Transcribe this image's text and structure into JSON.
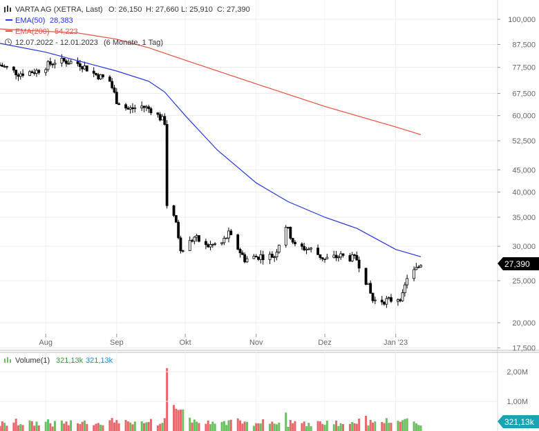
{
  "header": {
    "name": "VARTA AG (XETRA, Last)",
    "open": "O: 26,150",
    "high": "H: 27,660",
    "low": "L: 25,910",
    "close": "C: 27,390",
    "ema50_label": "EMA(50)",
    "ema50_value": "28,383",
    "ema200_label": "EMA(200)",
    "ema200_value": "54,223",
    "range": "12.07.2022 - 12.01.2023",
    "period": "(6 Monate, 1 Tag)",
    "volume_label": "Volume(1)",
    "volume_value1": "321,13k",
    "volume_value2": "321,13k"
  },
  "badges": {
    "price": "27,390",
    "volume": "321,13k"
  },
  "colors": {
    "ema50": "#2233dd",
    "ema200": "#e84c3d",
    "volume_up": "#6abf5e",
    "volume_down": "#e8676b",
    "candle": "#000000"
  },
  "chart_data": {
    "type": "candlestick",
    "scale": "log",
    "y_ticks": [
      "100,000",
      "87,500",
      "77,500",
      "67,500",
      "60,000",
      "52,500",
      "45,000",
      "40,000",
      "35,000",
      "30,000",
      "25,000",
      "20,000",
      "17,500"
    ],
    "y_tick_values": [
      100,
      87.5,
      77.5,
      67.5,
      60,
      52.5,
      45,
      40,
      35,
      30,
      25,
      20,
      17.5
    ],
    "x_ticks": [
      "Aug",
      "Sep",
      "Okt",
      "Nov",
      "Dez",
      "Jan '23"
    ],
    "x_tick_dates": [
      "2022-08-01",
      "2022-09-01",
      "2022-10-01",
      "2022-11-01",
      "2022-12-01",
      "2023-01-01"
    ],
    "x_range": [
      "2022-07-12",
      "2023-01-12"
    ],
    "volume_ticks": [
      "2,00M",
      "1,00M"
    ],
    "volume_tick_values": [
      2000000,
      1000000
    ],
    "close_series": [
      {
        "date": "2022-07-12",
        "value": 78.5
      },
      {
        "date": "2022-07-20",
        "value": 75.0
      },
      {
        "date": "2022-07-28",
        "value": 76.0
      },
      {
        "date": "2022-08-01",
        "value": 78.0
      },
      {
        "date": "2022-08-05",
        "value": 80.0
      },
      {
        "date": "2022-08-10",
        "value": 80.0
      },
      {
        "date": "2022-08-16",
        "value": 79.0
      },
      {
        "date": "2022-08-22",
        "value": 75.0
      },
      {
        "date": "2022-08-29",
        "value": 72.0
      },
      {
        "date": "2022-09-01",
        "value": 65.0
      },
      {
        "date": "2022-09-06",
        "value": 62.0
      },
      {
        "date": "2022-09-12",
        "value": 63.0
      },
      {
        "date": "2022-09-16",
        "value": 62.0
      },
      {
        "date": "2022-09-22",
        "value": 58.0
      },
      {
        "date": "2022-09-23",
        "value": 37.5
      },
      {
        "date": "2022-09-27",
        "value": 34.0
      },
      {
        "date": "2022-09-29",
        "value": 29.0
      },
      {
        "date": "2022-10-05",
        "value": 31.5
      },
      {
        "date": "2022-10-10",
        "value": 30.0
      },
      {
        "date": "2022-10-17",
        "value": 30.5
      },
      {
        "date": "2022-10-20",
        "value": 32.0
      },
      {
        "date": "2022-10-27",
        "value": 28.0
      },
      {
        "date": "2022-11-03",
        "value": 28.5
      },
      {
        "date": "2022-11-09",
        "value": 28.5
      },
      {
        "date": "2022-11-14",
        "value": 33.5
      },
      {
        "date": "2022-11-18",
        "value": 30.0
      },
      {
        "date": "2022-11-25",
        "value": 29.5
      },
      {
        "date": "2022-12-01",
        "value": 28.0
      },
      {
        "date": "2022-12-08",
        "value": 28.5
      },
      {
        "date": "2022-12-15",
        "value": 28.0
      },
      {
        "date": "2022-12-19",
        "value": 25.0
      },
      {
        "date": "2022-12-22",
        "value": 22.5
      },
      {
        "date": "2022-12-29",
        "value": 22.5
      },
      {
        "date": "2023-01-04",
        "value": 23.0
      },
      {
        "date": "2023-01-06",
        "value": 25.5
      },
      {
        "date": "2023-01-10",
        "value": 26.5
      },
      {
        "date": "2023-01-12",
        "value": 27.39
      }
    ],
    "ema50": [
      {
        "date": "2022-07-12",
        "value": 88.0
      },
      {
        "date": "2022-08-01",
        "value": 84.0
      },
      {
        "date": "2022-08-22",
        "value": 78.5
      },
      {
        "date": "2022-09-01",
        "value": 76.0
      },
      {
        "date": "2022-09-15",
        "value": 72.0
      },
      {
        "date": "2022-09-22",
        "value": 68.0
      },
      {
        "date": "2022-10-01",
        "value": 60.0
      },
      {
        "date": "2022-10-15",
        "value": 50.0
      },
      {
        "date": "2022-11-01",
        "value": 42.0
      },
      {
        "date": "2022-11-15",
        "value": 38.0
      },
      {
        "date": "2022-12-01",
        "value": 35.0
      },
      {
        "date": "2022-12-15",
        "value": 33.0
      },
      {
        "date": "2023-01-01",
        "value": 29.5
      },
      {
        "date": "2023-01-12",
        "value": 28.383
      }
    ],
    "ema200": [
      {
        "date": "2022-07-12",
        "value": 95.0
      },
      {
        "date": "2022-08-15",
        "value": 93.0
      },
      {
        "date": "2022-09-01",
        "value": 90.0
      },
      {
        "date": "2022-09-15",
        "value": 86.0
      },
      {
        "date": "2022-10-01",
        "value": 80.5
      },
      {
        "date": "2022-11-01",
        "value": 71.0
      },
      {
        "date": "2022-12-01",
        "value": 63.0
      },
      {
        "date": "2023-01-01",
        "value": 56.5
      },
      {
        "date": "2023-01-12",
        "value": 54.223
      }
    ]
  }
}
